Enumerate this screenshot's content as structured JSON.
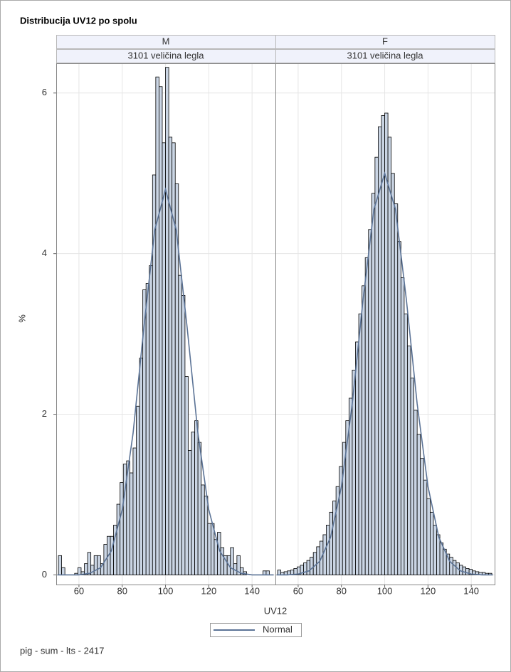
{
  "page": {
    "title": "Distribucija UV12 po spolu",
    "x_label": "UV12",
    "y_label": "%",
    "curve_name": "Normal",
    "curve_color": "#5b7396",
    "footnote": "pig - sum - lts - 2417"
  },
  "chart_data": [
    {
      "type": "histogram",
      "panel_label": "M",
      "group_label": "3101 veličina legla",
      "color": "#cad5e4",
      "grid": true,
      "xlim": [
        49.5,
        150.8
      ],
      "xticks": [
        60,
        80,
        100,
        120,
        140
      ],
      "ylim": [
        -0.12,
        6.37
      ],
      "yticks": [
        0,
        2,
        4,
        6
      ],
      "bins": [
        50.5,
        52,
        53.5,
        55,
        56.5,
        58,
        59.5,
        61,
        62.5,
        64,
        65.5,
        67,
        68.5,
        70,
        71.5,
        73,
        74.5,
        76,
        77.5,
        79,
        80.5,
        82,
        83.5,
        85,
        86.5,
        88,
        89.5,
        91,
        92.5,
        94,
        95.5,
        97,
        98.5,
        100,
        101.5,
        103,
        104.5,
        106,
        107.5,
        109,
        110.5,
        112,
        113.5,
        115,
        116.5,
        118,
        119.5,
        121,
        122.5,
        124,
        125.5,
        127,
        128.5,
        130,
        131.5,
        133,
        134.5,
        136,
        137.5,
        139,
        140.5,
        142,
        143.5,
        145,
        146.5,
        148,
        149.5
      ],
      "values": [
        0.24,
        0.09,
        0,
        0,
        0,
        0.02,
        0.09,
        0.04,
        0.14,
        0.28,
        0.12,
        0.24,
        0.24,
        0.14,
        0.38,
        0.48,
        0.48,
        0.62,
        0.88,
        1.15,
        1.38,
        1.42,
        1.27,
        1.58,
        2.1,
        2.7,
        3.55,
        3.63,
        3.85,
        4.98,
        6.2,
        6.08,
        5.38,
        6.32,
        5.45,
        5.38,
        4.87,
        3.73,
        3.48,
        2.47,
        1.55,
        1.78,
        1.92,
        1.65,
        1.12,
        0.98,
        0.64,
        0.64,
        0.44,
        0.53,
        0.34,
        0.24,
        0.24,
        0.34,
        0.14,
        0.24,
        0.09,
        0.04,
        0,
        0,
        0,
        0,
        0,
        0.05,
        0.05,
        0
      ],
      "curve": {
        "x": [
          50,
          55,
          60,
          65,
          70,
          75,
          80,
          85,
          90,
          95,
          100,
          105,
          110,
          115,
          120,
          125,
          130,
          135,
          140,
          145,
          150
        ],
        "values": [
          0,
          0,
          0,
          0.02,
          0.09,
          0.3,
          0.81,
          1.76,
          3.08,
          4.29,
          4.8,
          4.29,
          3.08,
          1.76,
          0.81,
          0.3,
          0.09,
          0.02,
          0,
          0,
          0
        ]
      }
    },
    {
      "type": "histogram",
      "panel_label": "F",
      "group_label": "3101 veličina legla",
      "color": "#cad5e4",
      "grid": true,
      "xlim": [
        49.5,
        150.8
      ],
      "xticks": [
        60,
        80,
        100,
        120,
        140
      ],
      "ylim": [
        -0.12,
        6.37
      ],
      "yticks": [
        0,
        2,
        4,
        6
      ],
      "bins": [
        50.5,
        52,
        53.5,
        55,
        56.5,
        58,
        59.5,
        61,
        62.5,
        64,
        65.5,
        67,
        68.5,
        70,
        71.5,
        73,
        74.5,
        76,
        77.5,
        79,
        80.5,
        82,
        83.5,
        85,
        86.5,
        88,
        89.5,
        91,
        92.5,
        94,
        95.5,
        97,
        98.5,
        100,
        101.5,
        103,
        104.5,
        106,
        107.5,
        109,
        110.5,
        112,
        113.5,
        115,
        116.5,
        118,
        119.5,
        121,
        122.5,
        124,
        125.5,
        127,
        128.5,
        130,
        131.5,
        133,
        134.5,
        136,
        137.5,
        139,
        140.5,
        142,
        143.5,
        145,
        146.5,
        148,
        149.5
      ],
      "values": [
        0.06,
        0.03,
        0.04,
        0.05,
        0.06,
        0.08,
        0.1,
        0.12,
        0.15,
        0.18,
        0.22,
        0.28,
        0.35,
        0.42,
        0.5,
        0.62,
        0.78,
        0.92,
        1.1,
        1.35,
        1.65,
        1.92,
        2.2,
        2.55,
        2.9,
        3.25,
        3.6,
        3.95,
        4.3,
        4.75,
        5.2,
        5.58,
        5.72,
        5.75,
        5.45,
        5.0,
        4.62,
        4.15,
        3.7,
        3.25,
        2.85,
        2.45,
        2.05,
        1.75,
        1.45,
        1.18,
        0.95,
        0.78,
        0.62,
        0.5,
        0.4,
        0.32,
        0.26,
        0.22,
        0.18,
        0.15,
        0.12,
        0.1,
        0.08,
        0.07,
        0.05,
        0.04,
        0.03,
        0.03,
        0.02,
        0.02
      ],
      "curve": {
        "x": [
          50,
          55,
          60,
          65,
          70,
          75,
          80,
          85,
          90,
          95,
          100,
          105,
          110,
          115,
          120,
          125,
          130,
          135,
          140,
          145,
          150
        ],
        "values": [
          0,
          0,
          0.01,
          0.05,
          0.17,
          0.47,
          1.1,
          2.13,
          3.43,
          4.55,
          5,
          4.55,
          3.43,
          2.13,
          1.1,
          0.47,
          0.17,
          0.05,
          0.01,
          0,
          0
        ]
      }
    }
  ]
}
